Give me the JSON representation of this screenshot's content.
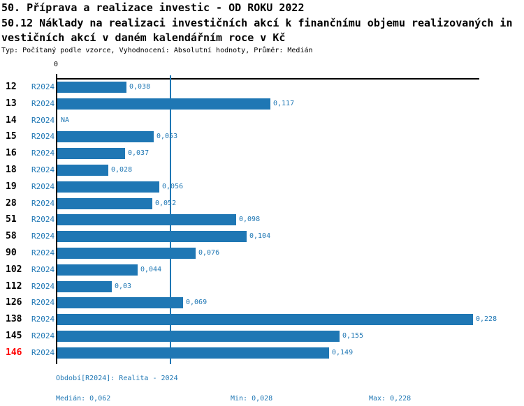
{
  "header": {
    "title_line1": "50. Příprava a realizace investic - OD ROKU 2022",
    "title_line2": "50.12 Náklady na realizaci investičních akcí k finančnímu objemu realizovaných in",
    "title_line3": "vestičních akcí v daném kalendářním roce v Kč",
    "meta": "Typ: Počítaný podle vzorce, Vyhodnocení: Absolutní hodnoty, Průměr: Medián"
  },
  "chart_data": {
    "type": "bar",
    "orientation": "horizontal",
    "title": "50.12 Náklady na realizaci investičních akcí k finančnímu objemu realizovaných investičních akcí v daném kalendářním roce v Kč",
    "categories": [
      "12",
      "13",
      "14",
      "15",
      "16",
      "18",
      "19",
      "28",
      "51",
      "58",
      "90",
      "102",
      "112",
      "126",
      "138",
      "145",
      "146"
    ],
    "period_label": "R2024",
    "values": [
      0.038,
      0.117,
      null,
      0.053,
      0.037,
      0.028,
      0.056,
      0.052,
      0.098,
      0.104,
      0.076,
      0.044,
      0.03,
      0.069,
      0.228,
      0.155,
      0.149
    ],
    "value_labels": [
      "0,038",
      "0,117",
      "NA",
      "0,053",
      "0,037",
      "0,028",
      "0,056",
      "0,052",
      "0,098",
      "0,104",
      "0,076",
      "0,044",
      "0,03",
      "0,069",
      "0,228",
      "0,155",
      "0,149"
    ],
    "na_label": "NA",
    "axis_zero_label": "0",
    "xlim": [
      0,
      0.2315
    ],
    "median_value": 0.062,
    "min_value": 0.028,
    "max_value": 0.228,
    "highlighted_category": "146",
    "grid": false,
    "legend": "none",
    "colors": {
      "bar": "#1F77B4",
      "label_blue": "#1F77B4",
      "highlight_red": "#FF0000",
      "axis_black": "#000000"
    }
  },
  "footer": {
    "period_info": "Období[R2024]: Realita - 2024",
    "median_label": "Medián: 0,062",
    "min_label": "Min: 0,028",
    "max_label": "Max: 0,228"
  }
}
